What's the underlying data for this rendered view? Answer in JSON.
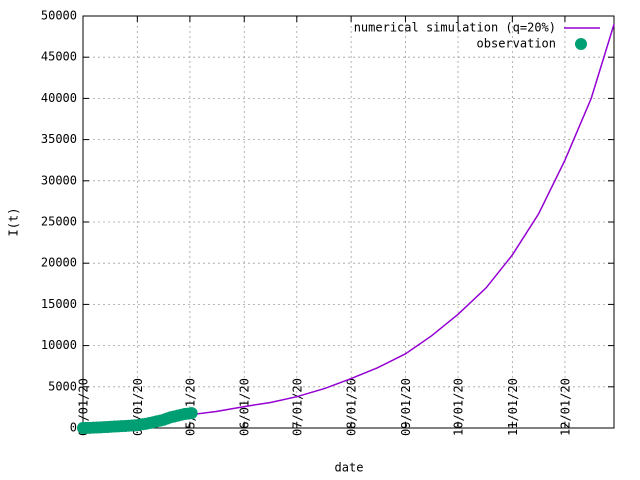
{
  "chart_data": {
    "type": "line",
    "x_label": "date",
    "y_label": "I(t)",
    "xlim": [
      0,
      303
    ],
    "ylim": [
      0,
      50000
    ],
    "xticks": [
      {
        "value": 0,
        "label": "03/01/20"
      },
      {
        "value": 31,
        "label": "04/01/20"
      },
      {
        "value": 61,
        "label": "05/01/20"
      },
      {
        "value": 92,
        "label": "06/01/20"
      },
      {
        "value": 122,
        "label": "07/01/20"
      },
      {
        "value": 153,
        "label": "08/01/20"
      },
      {
        "value": 184,
        "label": "09/01/20"
      },
      {
        "value": 214,
        "label": "10/01/20"
      },
      {
        "value": 245,
        "label": "11/01/20"
      },
      {
        "value": 275,
        "label": "12/01/20"
      }
    ],
    "yticks": [
      0,
      5000,
      10000,
      15000,
      20000,
      25000,
      30000,
      35000,
      40000,
      45000,
      50000
    ],
    "grid": true,
    "legend": "top-right",
    "series": [
      {
        "name": "numerical simulation (q=20%)",
        "color": "#9400d3",
        "style": "line",
        "x": [
          0,
          15,
          30,
          45,
          61,
          76,
          92,
          107,
          122,
          138,
          153,
          168,
          184,
          199,
          214,
          230,
          245,
          260,
          275,
          290,
          303
        ],
        "values": [
          0,
          150,
          350,
          900,
          1600,
          2000,
          2600,
          3100,
          3800,
          4800,
          6000,
          7300,
          9000,
          11200,
          13800,
          17000,
          21000,
          26000,
          32500,
          40000,
          49000
        ]
      },
      {
        "name": "observation",
        "color": "#009e73",
        "style": "points",
        "x": [
          0,
          2,
          4,
          6,
          8,
          10,
          12,
          14,
          16,
          18,
          20,
          22,
          24,
          26,
          28,
          30,
          32,
          34,
          36,
          38,
          40,
          42,
          44,
          46,
          48,
          50,
          52,
          54,
          56,
          58,
          60,
          62
        ],
        "values": [
          0,
          10,
          20,
          40,
          60,
          80,
          100,
          120,
          150,
          180,
          200,
          220,
          250,
          280,
          300,
          330,
          380,
          450,
          520,
          600,
          700,
          800,
          900,
          1000,
          1150,
          1300,
          1400,
          1500,
          1600,
          1700,
          1750,
          1800
        ]
      }
    ]
  }
}
